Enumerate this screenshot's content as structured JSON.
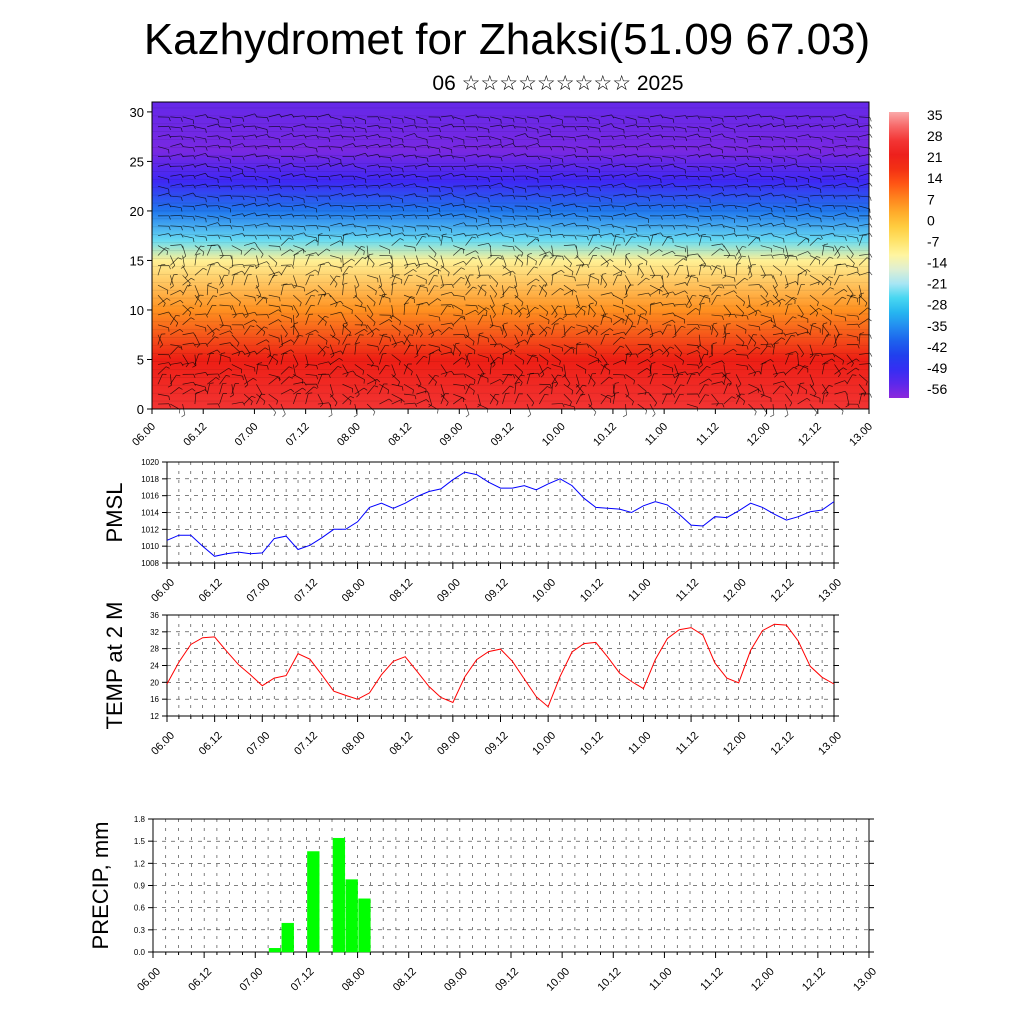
{
  "title": "Kazhydromet for Zhaksi(51.09 67.03)",
  "subtitle": "06 ☆☆☆☆☆☆☆☆☆ 2025",
  "colors": {
    "pmsl_line": "#0000ff",
    "temp_line": "#ff0000",
    "precip_bar": "#00ff00",
    "wind_barb": "#000000"
  },
  "chart_data": [
    {
      "type": "heatmap",
      "panel": "cross-section",
      "title": "",
      "xlabel": "",
      "ylabel": "",
      "x_tick_labels": [
        "06.00",
        "06.12",
        "07.00",
        "07.12",
        "08.00",
        "08.12",
        "09.00",
        "09.12",
        "10.00",
        "10.12",
        "11.00",
        "11.12",
        "12.00",
        "12.12",
        "13.00"
      ],
      "y_ticks": [
        0,
        5,
        10,
        15,
        20,
        25,
        30
      ],
      "ylim": [
        0,
        31
      ],
      "colorbar_labels": [
        "35",
        "28",
        "21",
        "14",
        "7",
        "0",
        "-7",
        "-14",
        "-21",
        "-28",
        "-35",
        "-42",
        "-49",
        "-56"
      ],
      "temperature_profile": [
        {
          "height": 0,
          "value": 28
        },
        {
          "height": 5,
          "value": 21
        },
        {
          "height": 10,
          "value": 7
        },
        {
          "height": 15,
          "value": -10
        },
        {
          "height": 17,
          "value": -24
        },
        {
          "height": 20,
          "value": -38
        },
        {
          "height": 23,
          "value": -52
        },
        {
          "height": 26,
          "value": -58
        },
        {
          "height": 31,
          "value": -56
        }
      ],
      "overlay": "wind barbs"
    },
    {
      "type": "line",
      "panel": "pmsl",
      "ylabel": "PMSL",
      "ylim": [
        1008,
        1020
      ],
      "y_ticks": [
        1008,
        1010,
        1012,
        1014,
        1016,
        1018,
        1020
      ],
      "x_tick_labels": [
        "06.00",
        "06.12",
        "07.00",
        "07.12",
        "08.00",
        "08.12",
        "09.00",
        "09.12",
        "10.00",
        "10.12",
        "11.00",
        "11.12",
        "12.00",
        "12.12",
        "13.00"
      ],
      "x_step_hours": 3,
      "values": [
        1010.7,
        1011.3,
        1011.3,
        1010.0,
        1008.8,
        1009.1,
        1009.3,
        1009.1,
        1009.2,
        1010.9,
        1011.2,
        1009.6,
        1010.1,
        1011.0,
        1012.0,
        1012.0,
        1012.9,
        1014.6,
        1015.1,
        1014.5,
        1015.1,
        1015.9,
        1016.5,
        1016.8,
        1017.9,
        1018.8,
        1018.5,
        1017.6,
        1016.9,
        1016.9,
        1017.2,
        1016.7,
        1017.4,
        1018.0,
        1017.2,
        1015.7,
        1014.6,
        1014.5,
        1014.4,
        1014.0,
        1014.8,
        1015.3,
        1014.9,
        1013.8,
        1012.5,
        1012.4,
        1013.5,
        1013.4,
        1014.2,
        1015.1,
        1014.6,
        1013.8,
        1013.1,
        1013.5,
        1014.1,
        1014.3,
        1015.3
      ]
    },
    {
      "type": "line",
      "panel": "temp",
      "ylabel": "TEMP at 2 M",
      "ylim": [
        12,
        36
      ],
      "y_ticks": [
        12,
        16,
        20,
        24,
        28,
        32,
        36
      ],
      "x_tick_labels": [
        "06.00",
        "06.12",
        "07.00",
        "07.12",
        "08.00",
        "08.12",
        "09.00",
        "09.12",
        "10.00",
        "10.12",
        "11.00",
        "11.12",
        "12.00",
        "12.12",
        "13.00"
      ],
      "x_step_hours": 3,
      "values": [
        19.6,
        24.8,
        29.0,
        30.6,
        30.8,
        27.4,
        24.2,
        21.8,
        19.2,
        21.0,
        21.6,
        26.8,
        25.5,
        21.8,
        17.9,
        16.9,
        16.0,
        17.5,
        21.8,
        25.0,
        26.1,
        22.6,
        19.0,
        16.4,
        15.2,
        21.3,
        25.4,
        27.3,
        27.9,
        25.0,
        20.8,
        16.6,
        14.2,
        21.4,
        27.2,
        29.2,
        29.5,
        26.0,
        22.2,
        20.2,
        18.5,
        25.4,
        30.4,
        32.5,
        33.0,
        31.2,
        24.6,
        21.0,
        19.9,
        27.6,
        32.3,
        33.8,
        33.6,
        29.8,
        23.8,
        21.2,
        19.6
      ]
    },
    {
      "type": "bar",
      "panel": "precip",
      "ylabel": "PRECIP, mm",
      "ylim": [
        0,
        1.8
      ],
      "y_ticks": [
        "0.0",
        "0.3",
        "0.6",
        "0.9",
        "1.2",
        "1.5",
        "1.8"
      ],
      "x_tick_labels": [
        "06.00",
        "06.12",
        "07.00",
        "07.12",
        "08.00",
        "08.12",
        "09.00",
        "09.12",
        "10.00",
        "10.12",
        "11.00",
        "11.12",
        "12.00",
        "12.12",
        "13.00"
      ],
      "x_step_hours": 3,
      "values": [
        0,
        0,
        0,
        0,
        0,
        0,
        0,
        0,
        0,
        0.05,
        0.39,
        0,
        1.36,
        0,
        1.54,
        0.98,
        0.72,
        0,
        0,
        0,
        0,
        0,
        0,
        0,
        0,
        0,
        0,
        0,
        0,
        0,
        0,
        0,
        0,
        0,
        0,
        0,
        0,
        0,
        0,
        0,
        0,
        0,
        0,
        0,
        0,
        0,
        0,
        0,
        0,
        0,
        0,
        0,
        0,
        0,
        0,
        0
      ]
    }
  ]
}
